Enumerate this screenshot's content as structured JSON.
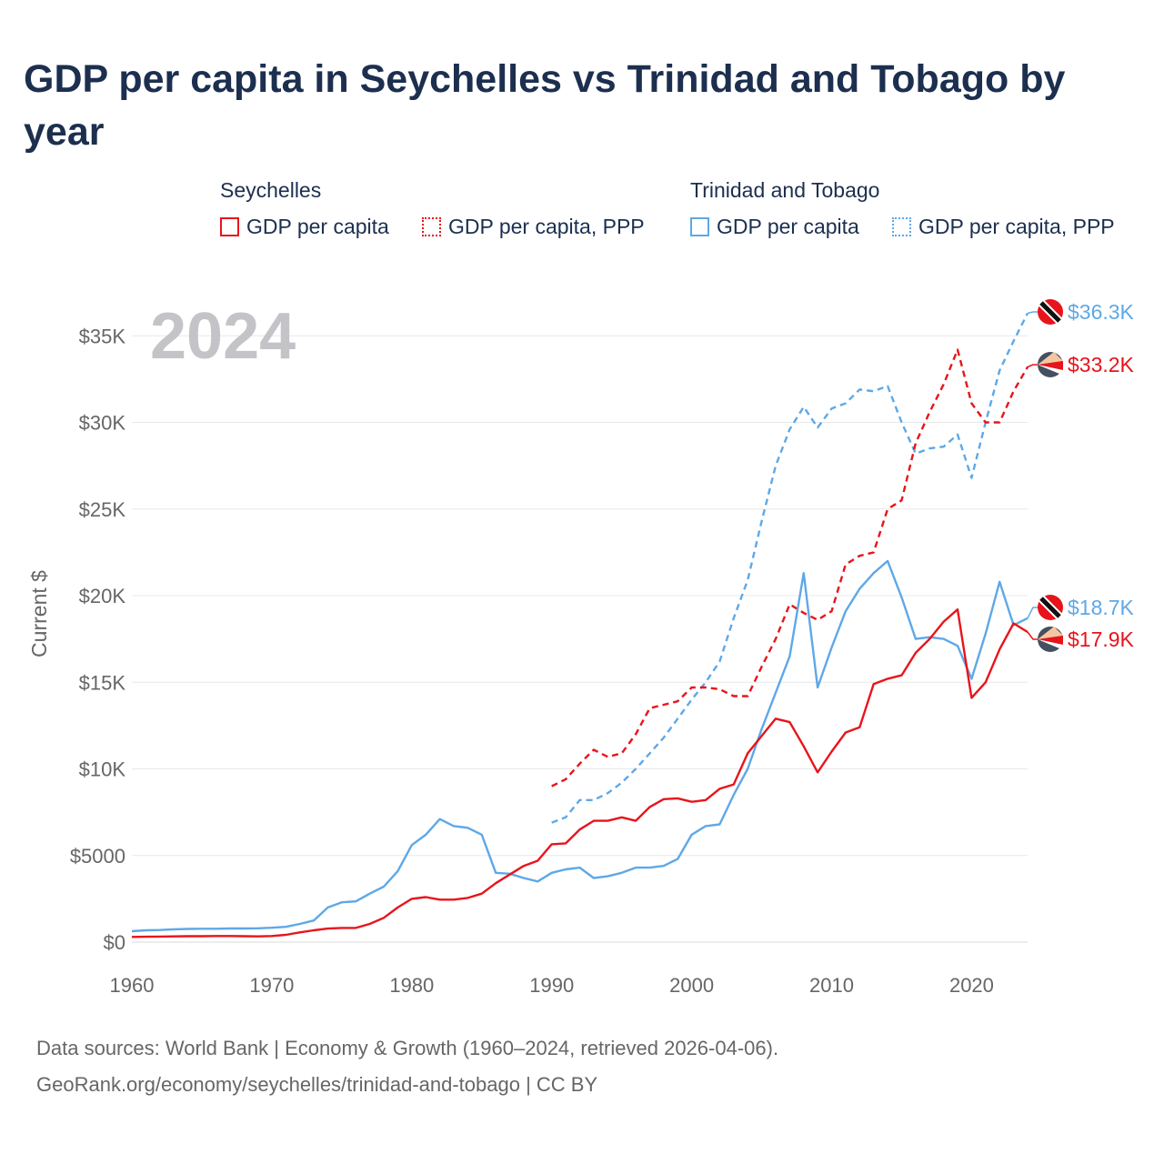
{
  "title": "GDP per capita in Seychelles vs Trinidad and Tobago by year",
  "legend": {
    "seychelles_title": "Seychelles",
    "tt_title": "Trinidad and Tobago",
    "sc_gdp": "GDP per capita",
    "sc_ppp": "GDP per capita, PPP",
    "tt_gdp": "GDP per capita",
    "tt_ppp": "GDP per capita, PPP"
  },
  "footer": {
    "line1": "Data sources: World Bank | Economy & Growth (1960–2024, retrieved 2026-04-06).",
    "line2": "GeoRank.org/economy/seychelles/trinidad-and-tobago | CC BY"
  },
  "colors": {
    "seychelles": "#e8141b",
    "trinidad": "#5ea8e7"
  },
  "chart_data": {
    "type": "line",
    "title": "GDP per capita in Seychelles vs Trinidad and Tobago by year",
    "year_label": "2024",
    "xlabel": "",
    "ylabel": "Current $",
    "xlim": [
      1960,
      2024
    ],
    "ylim": [
      0,
      37000
    ],
    "x_ticks": [
      1960,
      1970,
      1980,
      1990,
      2000,
      2010,
      2020
    ],
    "x_tick_labels": [
      "1960",
      "1970",
      "1980",
      "1990",
      "2000",
      "2010",
      "2020"
    ],
    "y_ticks": [
      0,
      5000,
      10000,
      15000,
      20000,
      25000,
      30000,
      35000
    ],
    "y_tick_labels": [
      "$0",
      "$5000",
      "$10K",
      "$15K",
      "$20K",
      "$25K",
      "$30K",
      "$35K"
    ],
    "end_labels": {
      "tt_ppp": "$36.3K",
      "sc_ppp": "$33.2K",
      "tt_gdp": "$18.7K",
      "sc_gdp": "$17.9K"
    },
    "series": [
      {
        "key": "sc_gdp",
        "name": "Seychelles GDP per capita",
        "color": "#e8141b",
        "dash": false,
        "x": [
          1960,
          1961,
          1962,
          1963,
          1964,
          1965,
          1966,
          1967,
          1968,
          1969,
          1970,
          1971,
          1972,
          1973,
          1974,
          1975,
          1976,
          1977,
          1978,
          1979,
          1980,
          1981,
          1982,
          1983,
          1984,
          1985,
          1986,
          1987,
          1988,
          1989,
          1990,
          1991,
          1992,
          1993,
          1994,
          1995,
          1996,
          1997,
          1998,
          1999,
          2000,
          2001,
          2002,
          2003,
          2004,
          2005,
          2006,
          2007,
          2008,
          2009,
          2010,
          2011,
          2012,
          2013,
          2014,
          2015,
          2016,
          2017,
          2018,
          2019,
          2020,
          2021,
          2022,
          2023,
          2024
        ],
        "values": [
          300,
          310,
          320,
          330,
          340,
          340,
          350,
          350,
          340,
          330,
          350,
          420,
          560,
          680,
          780,
          820,
          820,
          1050,
          1400,
          2000,
          2500,
          2600,
          2450,
          2450,
          2550,
          2800,
          3400,
          3900,
          4400,
          4700,
          5650,
          5700,
          6500,
          7000,
          7000,
          7200,
          7000,
          7800,
          8250,
          8300,
          8100,
          8200,
          8850,
          9100,
          10900,
          11900,
          12900,
          12700,
          11300,
          9800,
          11000,
          12100,
          12400,
          14900,
          15200,
          15400,
          16700,
          17500,
          18500,
          19200,
          14100,
          15000,
          16900,
          18400,
          17900
        ]
      },
      {
        "key": "sc_ppp",
        "name": "Seychelles GDP per capita, PPP",
        "color": "#e8141b",
        "dash": true,
        "x": [
          1990,
          1991,
          1992,
          1993,
          1994,
          1995,
          1996,
          1997,
          1998,
          1999,
          2000,
          2001,
          2002,
          2003,
          2004,
          2005,
          2006,
          2007,
          2008,
          2009,
          2010,
          2011,
          2012,
          2013,
          2014,
          2015,
          2016,
          2017,
          2018,
          2019,
          2020,
          2021,
          2022,
          2023,
          2024
        ],
        "values": [
          9000,
          9400,
          10300,
          11100,
          10700,
          10900,
          12000,
          13500,
          13700,
          13900,
          14700,
          14700,
          14600,
          14200,
          14200,
          15900,
          17500,
          19500,
          19000,
          18600,
          19100,
          21800,
          22300,
          22500,
          25000,
          25500,
          28800,
          30600,
          32200,
          34200,
          31100,
          30000,
          30000,
          31800,
          33200
        ]
      },
      {
        "key": "tt_gdp",
        "name": "Trinidad and Tobago GDP per capita",
        "color": "#5ea8e7",
        "dash": false,
        "x": [
          1960,
          1961,
          1962,
          1963,
          1964,
          1965,
          1966,
          1967,
          1968,
          1969,
          1970,
          1971,
          1972,
          1973,
          1974,
          1975,
          1976,
          1977,
          1978,
          1979,
          1980,
          1981,
          1982,
          1983,
          1984,
          1985,
          1986,
          1987,
          1988,
          1989,
          1990,
          1991,
          1992,
          1993,
          1994,
          1995,
          1996,
          1997,
          1998,
          1999,
          2000,
          2001,
          2002,
          2003,
          2004,
          2005,
          2006,
          2007,
          2008,
          2009,
          2010,
          2011,
          2012,
          2013,
          2014,
          2015,
          2016,
          2017,
          2018,
          2019,
          2020,
          2021,
          2022,
          2023,
          2024
        ],
        "values": [
          630,
          680,
          700,
          740,
          760,
          770,
          770,
          790,
          790,
          800,
          830,
          880,
          1050,
          1250,
          2000,
          2300,
          2350,
          2800,
          3200,
          4100,
          5600,
          6200,
          7100,
          6700,
          6600,
          6200,
          4000,
          3950,
          3700,
          3500,
          4000,
          4200,
          4300,
          3700,
          3800,
          4000,
          4300,
          4300,
          4400,
          4800,
          6200,
          6700,
          6800,
          8500,
          10000,
          12300,
          14400,
          16500,
          21300,
          14700,
          17000,
          19100,
          20400,
          21300,
          22000,
          19900,
          17500,
          17600,
          17500,
          17100,
          15200,
          17800,
          20800,
          18300,
          18700
        ]
      },
      {
        "key": "tt_ppp",
        "name": "Trinidad and Tobago GDP per capita, PPP",
        "color": "#5ea8e7",
        "dash": true,
        "x": [
          1990,
          1991,
          1992,
          1993,
          1994,
          1995,
          1996,
          1997,
          1998,
          1999,
          2000,
          2001,
          2002,
          2003,
          2004,
          2005,
          2006,
          2007,
          2008,
          2009,
          2010,
          2011,
          2012,
          2013,
          2014,
          2015,
          2016,
          2017,
          2018,
          2019,
          2020,
          2021,
          2022,
          2023,
          2024
        ],
        "values": [
          6900,
          7200,
          8200,
          8200,
          8600,
          9200,
          10000,
          10900,
          11800,
          12900,
          14000,
          15000,
          16200,
          18700,
          20900,
          24300,
          27500,
          29600,
          30900,
          29700,
          30800,
          31100,
          31900,
          31800,
          32100,
          30000,
          28200,
          28500,
          28600,
          29300,
          26800,
          30000,
          33000,
          34700,
          36300
        ]
      }
    ]
  }
}
